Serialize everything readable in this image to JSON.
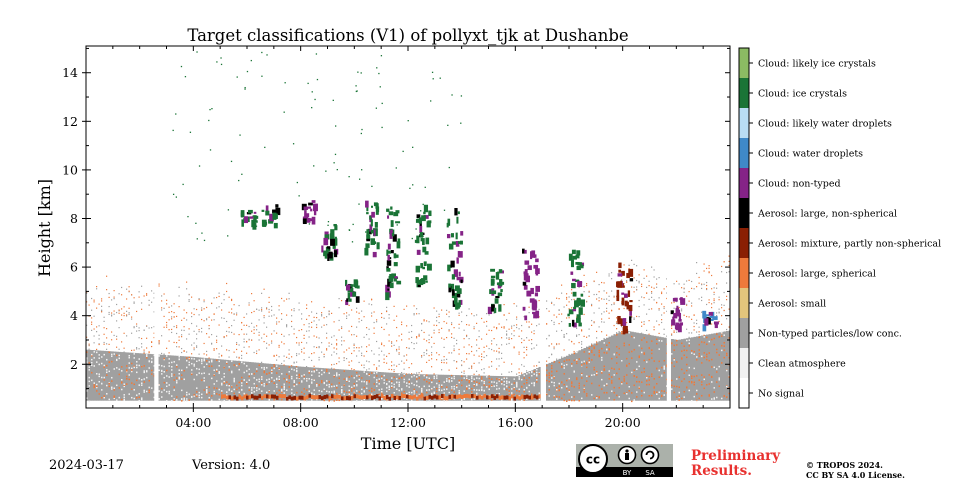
{
  "chart_data": {
    "type": "heatmap",
    "title": "Target classifications (V1) of pollyxt_tjk at Dushanbe",
    "xlabel": "Time [UTC]",
    "ylabel": "Height [km]",
    "xlim": [
      0,
      24
    ],
    "ylim": [
      0.2,
      15.1
    ],
    "x_ticks": [
      "04:00",
      "08:00",
      "12:00",
      "16:00",
      "20:00"
    ],
    "x_tick_hours": [
      4,
      8,
      12,
      16,
      20
    ],
    "y_ticks": [
      "2",
      "4",
      "6",
      "8",
      "10",
      "12",
      "14"
    ],
    "y_tick_values": [
      2,
      4,
      6,
      8,
      10,
      12,
      14
    ],
    "classes": [
      {
        "label": "Cloud: likely ice crystals",
        "color": "#8bbb63"
      },
      {
        "label": "Cloud: ice crystals",
        "color": "#1a7436"
      },
      {
        "label": "Cloud: likely water droplets",
        "color": "#b9ddf4"
      },
      {
        "label": "Cloud: water droplets",
        "color": "#3f89c8"
      },
      {
        "label": "Cloud: non-typed",
        "color": "#852387"
      },
      {
        "label": "Aerosol: large, non-spherical",
        "color": "#000000"
      },
      {
        "label": "Aerosol: mixture, partly non-spherical",
        "color": "#8a1f03"
      },
      {
        "label": "Aerosol: large, spherical",
        "color": "#ee7a3b"
      },
      {
        "label": "Aerosol: small",
        "color": "#e3c57c"
      },
      {
        "label": "Non-typed particles/low conc.",
        "color": "#a0a0a0"
      },
      {
        "label": "Clean atmosphere",
        "color": "#f1f1f1"
      },
      {
        "label": "No signal",
        "color": "#ffffff"
      }
    ],
    "data_gaps_hours": [
      2.6,
      17.0,
      21.7
    ],
    "aerosol_layer_top_km": [
      [
        0,
        2.6
      ],
      [
        4,
        2.3
      ],
      [
        8,
        1.9
      ],
      [
        12,
        1.6
      ],
      [
        16,
        1.5
      ],
      [
        18,
        2.4
      ],
      [
        20,
        3.4
      ],
      [
        22,
        3.0
      ],
      [
        24,
        3.4
      ]
    ],
    "cloud_features": [
      {
        "x": 6.0,
        "y_range": [
          7.8,
          8.4
        ],
        "class": "Cloud: ice crystals"
      },
      {
        "x": 6.8,
        "y_range": [
          7.8,
          8.6
        ],
        "class": "Cloud: ice crystals"
      },
      {
        "x": 8.3,
        "y_range": [
          8.0,
          8.8
        ],
        "class": "Cloud: non-typed"
      },
      {
        "x": 9.0,
        "y_range": [
          6.0,
          7.8
        ],
        "class": "Cloud: ice crystals"
      },
      {
        "x": 9.9,
        "y_range": [
          4.6,
          5.5
        ],
        "class": "Cloud: ice crystals"
      },
      {
        "x": 10.6,
        "y_range": [
          6.6,
          8.8
        ],
        "class": "Cloud: ice crystals"
      },
      {
        "x": 11.4,
        "y_range": [
          4.8,
          8.6
        ],
        "class": "Cloud: ice crystals"
      },
      {
        "x": 12.5,
        "y_range": [
          5.2,
          8.6
        ],
        "class": "Cloud: ice crystals"
      },
      {
        "x": 13.7,
        "y_range": [
          4.5,
          8.5
        ],
        "class": "Cloud: ice crystals"
      },
      {
        "x": 15.2,
        "y_range": [
          4.2,
          6.0
        ],
        "class": "Cloud: ice crystals"
      },
      {
        "x": 16.5,
        "y_range": [
          4.0,
          6.8
        ],
        "class": "Cloud: non-typed"
      },
      {
        "x": 18.2,
        "y_range": [
          3.6,
          6.8
        ],
        "class": "Cloud: ice crystals"
      },
      {
        "x": 20.0,
        "y_range": [
          3.4,
          6.2
        ],
        "class": "Aerosol: mixture, partly non-spherical"
      },
      {
        "x": 22.0,
        "y_range": [
          3.4,
          4.8
        ],
        "class": "Cloud: non-typed"
      },
      {
        "x": 23.2,
        "y_range": [
          3.4,
          4.2
        ],
        "class": "Cloud: water droplets"
      }
    ]
  },
  "footer": {
    "date": "2024-03-17",
    "version": "Version: 4.0",
    "preliminary": "Preliminary Results.",
    "copyright_line1": "© TROPOS 2024.",
    "copyright_line2": "CC BY SA 4.0 License.",
    "license_badge": {
      "cc": "cc",
      "by": "BY",
      "sa": "SA",
      "icon": "cc-by-sa-icon"
    }
  }
}
